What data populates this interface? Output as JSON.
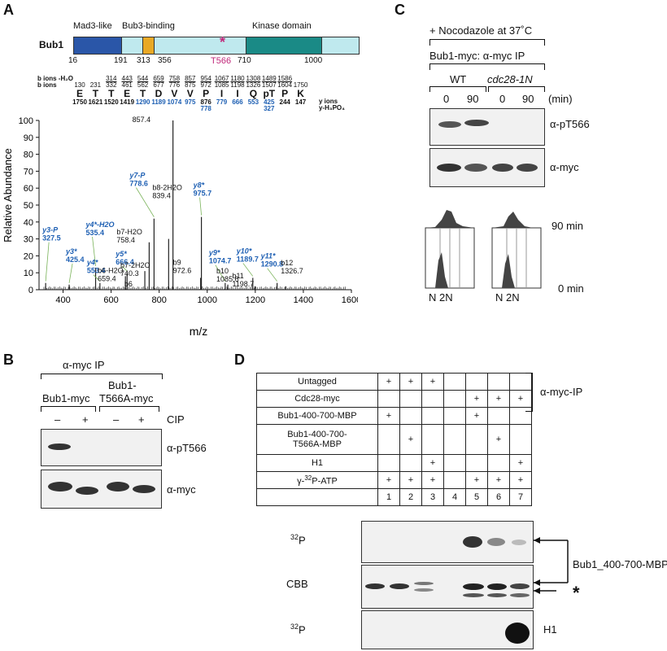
{
  "panels": {
    "A": "A",
    "B": "B",
    "C": "C",
    "D": "D"
  },
  "panelA": {
    "protein_name": "Bub1",
    "domains": [
      "Mad3-like",
      "Bub3-binding",
      "Kinase domain"
    ],
    "positions": [
      "16",
      "191",
      "313",
      "356",
      "710",
      "1000"
    ],
    "site_label": "T566",
    "site_marker": "*",
    "ion_row_labels": [
      "b ions -H₂O",
      "b ions"
    ],
    "yion_row_labels": [
      "y ions",
      "y-H₃PO₄"
    ],
    "bH2O": [
      "",
      "",
      "314",
      "443",
      "544",
      "659",
      "758",
      "857",
      "954",
      "1067",
      "1180",
      "1308",
      "1489",
      "1586"
    ],
    "bions": [
      "130",
      "231",
      "332",
      "461",
      "562",
      "677",
      "776",
      "875",
      "972",
      "1085",
      "1198",
      "1326",
      "1507",
      "1604",
      "1750"
    ],
    "residues": [
      "E",
      "T",
      "T",
      "E",
      "T",
      "D",
      "V",
      "V",
      "P",
      "I",
      "I",
      "Q",
      "pT",
      "P",
      "K"
    ],
    "yions": [
      "1750",
      "1621",
      "1520",
      "1419",
      "1290",
      "1189",
      "1074",
      "975",
      "876",
      "779",
      "666",
      "553",
      "425",
      "244",
      "147"
    ],
    "yH3PO4": [
      "",
      "",
      "",
      "",
      "",
      "",
      "",
      "",
      "778",
      "",
      "",
      "",
      "327",
      "",
      ""
    ],
    "chart_data": {
      "type": "bar",
      "xlabel": "m/z",
      "ylabel": "Relative Abundance",
      "xlim": [
        300,
        1600
      ],
      "ylim": [
        0,
        100
      ],
      "xticks": [
        400,
        600,
        800,
        1000,
        1200,
        1400,
        1600
      ],
      "yticks": [
        0,
        10,
        20,
        30,
        40,
        50,
        60,
        70,
        80,
        90,
        100
      ],
      "peaks": [
        {
          "mz": 327.5,
          "rel": 4,
          "label": "y3-P 327.5",
          "blue": true
        },
        {
          "mz": 425.4,
          "rel": 3,
          "label": "y3* 425.4",
          "blue": true
        },
        {
          "mz": 535.4,
          "rel": 13,
          "label": "y4*-H2O 535.4",
          "blue": true
        },
        {
          "mz": 553.4,
          "rel": 4,
          "label": "y4* 553.4",
          "blue": true
        },
        {
          "mz": 659.4,
          "rel": 8,
          "label": "b6-H2O 659.4",
          "blue": false
        },
        {
          "mz": 666.4,
          "rel": 10,
          "label": "y5* 666.4",
          "blue": true
        },
        {
          "mz": 740.3,
          "rel": 11,
          "label": "b7-2H2O 740.3",
          "blue": false
        },
        {
          "mz": 758.4,
          "rel": 28,
          "label": "b7-H2O 758.4",
          "blue": false
        },
        {
          "mz": 778.6,
          "rel": 42,
          "label": "y7-P 778.6",
          "blue": true
        },
        {
          "mz": 839.4,
          "rel": 30,
          "label": "b8-2H2O 839.4",
          "blue": false
        },
        {
          "mz": 857.4,
          "rel": 100,
          "label": "b8-H2O 857.4",
          "blue": false
        },
        {
          "mz": 972.6,
          "rel": 7,
          "label": "b9 972.6",
          "blue": false
        },
        {
          "mz": 975.7,
          "rel": 43,
          "label": "y8* 975.7",
          "blue": true
        },
        {
          "mz": 1074.7,
          "rel": 4,
          "label": "y9* 1074.7",
          "blue": true
        },
        {
          "mz": 1085.6,
          "rel": 3,
          "label": "b10 1085.6",
          "blue": false
        },
        {
          "mz": 1189.7,
          "rel": 7,
          "label": "y10* 1189.7",
          "blue": true
        },
        {
          "mz": 1198.7,
          "rel": 2,
          "label": "b11 1198.7",
          "blue": false
        },
        {
          "mz": 1290.8,
          "rel": 4,
          "label": "y11* 1290.8",
          "blue": true
        },
        {
          "mz": 1326.7,
          "rel": 2,
          "label": "b12 1326.7",
          "blue": false
        }
      ],
      "extra_labels": [
        "b6"
      ]
    }
  },
  "panelB": {
    "ip_label": "α-myc IP",
    "strain1": "Bub1-myc",
    "strain2_line1": "Bub1-",
    "strain2_line2": "T566A-myc",
    "cip_label": "CIP",
    "cip_marks": [
      "–",
      "+",
      "–",
      "+"
    ],
    "blot1": "α-pT566",
    "blot2": "α-myc"
  },
  "panelC": {
    "treatment": "+ Nocodazole at 37˚C",
    "ip_label": "Bub1-myc: α-myc IP",
    "wt": "WT",
    "mutant": "cdc28-1N",
    "times": [
      "0",
      "90",
      "0",
      "90"
    ],
    "min_label": "(min)",
    "blot1": "α-pT566",
    "blot2": "α-myc",
    "facs_top": "90 min",
    "facs_bottom": "0 min",
    "facs_axis": "N 2N"
  },
  "panelD": {
    "rows": [
      {
        "label": "Untagged",
        "marks": [
          "+",
          "+",
          "+",
          "",
          "",
          "",
          ""
        ]
      },
      {
        "label": "Cdc28-myc",
        "marks": [
          "",
          "",
          "",
          "",
          "+",
          "+",
          "+"
        ]
      },
      {
        "label": "Bub1-400-700-MBP",
        "marks": [
          "+",
          "",
          "",
          "",
          "+",
          "",
          ""
        ]
      },
      {
        "label": "Bub1-400-700-\nT566A-MBP",
        "marks": [
          "",
          "+",
          "",
          "",
          "",
          "+",
          ""
        ]
      },
      {
        "label": "H1",
        "marks": [
          "",
          "",
          "+",
          "",
          "",
          "",
          "+"
        ]
      },
      {
        "label": "γ-32P-ATP",
        "marks": [
          "+",
          "+",
          "+",
          "",
          "+",
          "+",
          "+"
        ]
      }
    ],
    "lanes": [
      "1",
      "2",
      "3",
      "4",
      "5",
      "6",
      "7"
    ],
    "ip_bracket": "α-myc-IP",
    "gel1": "32P",
    "gel2": "CBB",
    "gel3": "32P",
    "target_label": "Bub1_400-700-MBP",
    "star": "*",
    "h1_label": "H1"
  }
}
